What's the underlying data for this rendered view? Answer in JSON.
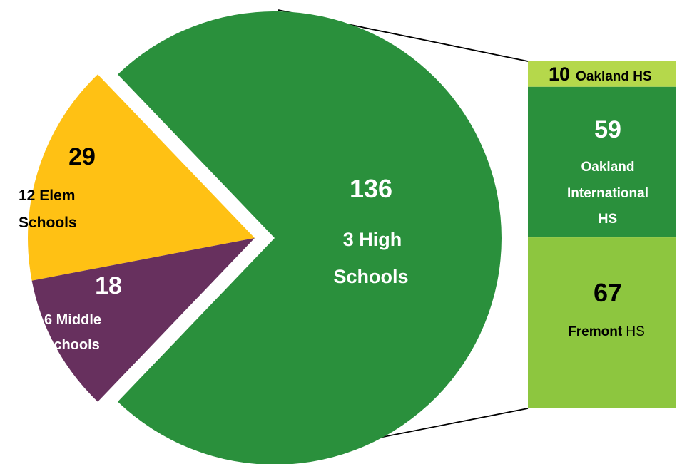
{
  "chart_data": {
    "type": "pie",
    "subtype": "bar-of-pie",
    "colors": {
      "high": "#2A903C",
      "elem": "#FFC114",
      "middle": "#67305E",
      "bar_light": "#8DC63F",
      "bar_top": "#B5D84B",
      "connector": "#000000",
      "label_light": "#FFFFFF",
      "label_dark": "#000000"
    },
    "slices": [
      {
        "key": "high",
        "value": 136,
        "value_label": "136",
        "label_lines": [
          "3 High",
          "Schools"
        ],
        "exploded": false
      },
      {
        "key": "elem",
        "value": 29,
        "value_label": "29",
        "label_lines": [
          "12 Elem",
          "Schools"
        ],
        "exploded": true
      },
      {
        "key": "middle",
        "value": 18,
        "value_label": "18",
        "label_lines": [
          "6 Middle",
          "Schools"
        ],
        "exploded": true
      }
    ],
    "breakdown_of": "high",
    "bar_segments": [
      {
        "key": "oakland",
        "value": 10,
        "value_label": "10",
        "label_bold": "Oakland HS",
        "label_normal": ""
      },
      {
        "key": "oakland-international",
        "value": 59,
        "value_label": "59",
        "label_bold": "Oakland International HS",
        "label_normal": ""
      },
      {
        "key": "fremont",
        "value": 67,
        "value_label": "67",
        "label_bold": "Fremont",
        "label_normal": " HS"
      }
    ]
  }
}
